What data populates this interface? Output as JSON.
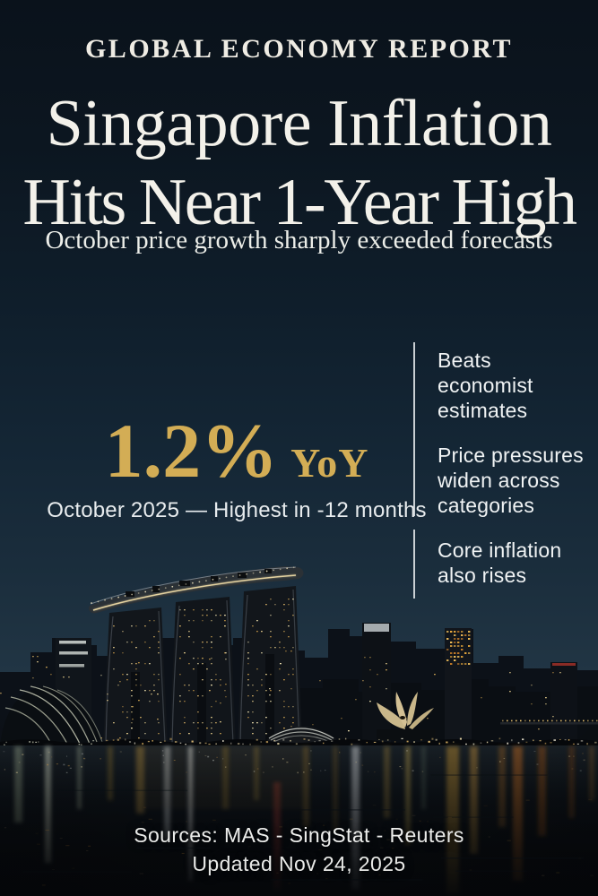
{
  "header": {
    "kicker": "GLOBAL ECONOMY REPORT",
    "headline_line1": "Singapore Inflation",
    "headline_line2": "Hits Near 1-Year High",
    "subtitle": "October price growth sharply exceeded forecasts"
  },
  "stat": {
    "value": "1.2%",
    "unit": "YoY",
    "caption": "October 2025 — Highest in -12 months"
  },
  "highlights": [
    {
      "text": "Beats\neconomist\nestimates"
    },
    {
      "text": "Price pressures\nwiden across\ncategories"
    },
    {
      "text": "Core inflation\nalso rises"
    }
  ],
  "footer": {
    "sources": "Sources: MAS - SingStat - Reuters",
    "updated": "Updated Nov 24, 2025"
  },
  "colors": {
    "background_top": "#0a121b",
    "background_horizon": "#273a4a",
    "accent_gold": "#d3ad55",
    "headline_text": "#f3f1ea",
    "body_text": "#f0f3f4",
    "divider": "#d9dee1",
    "window_light": "#d9b266",
    "water_reflection_gold": "#97742e"
  }
}
